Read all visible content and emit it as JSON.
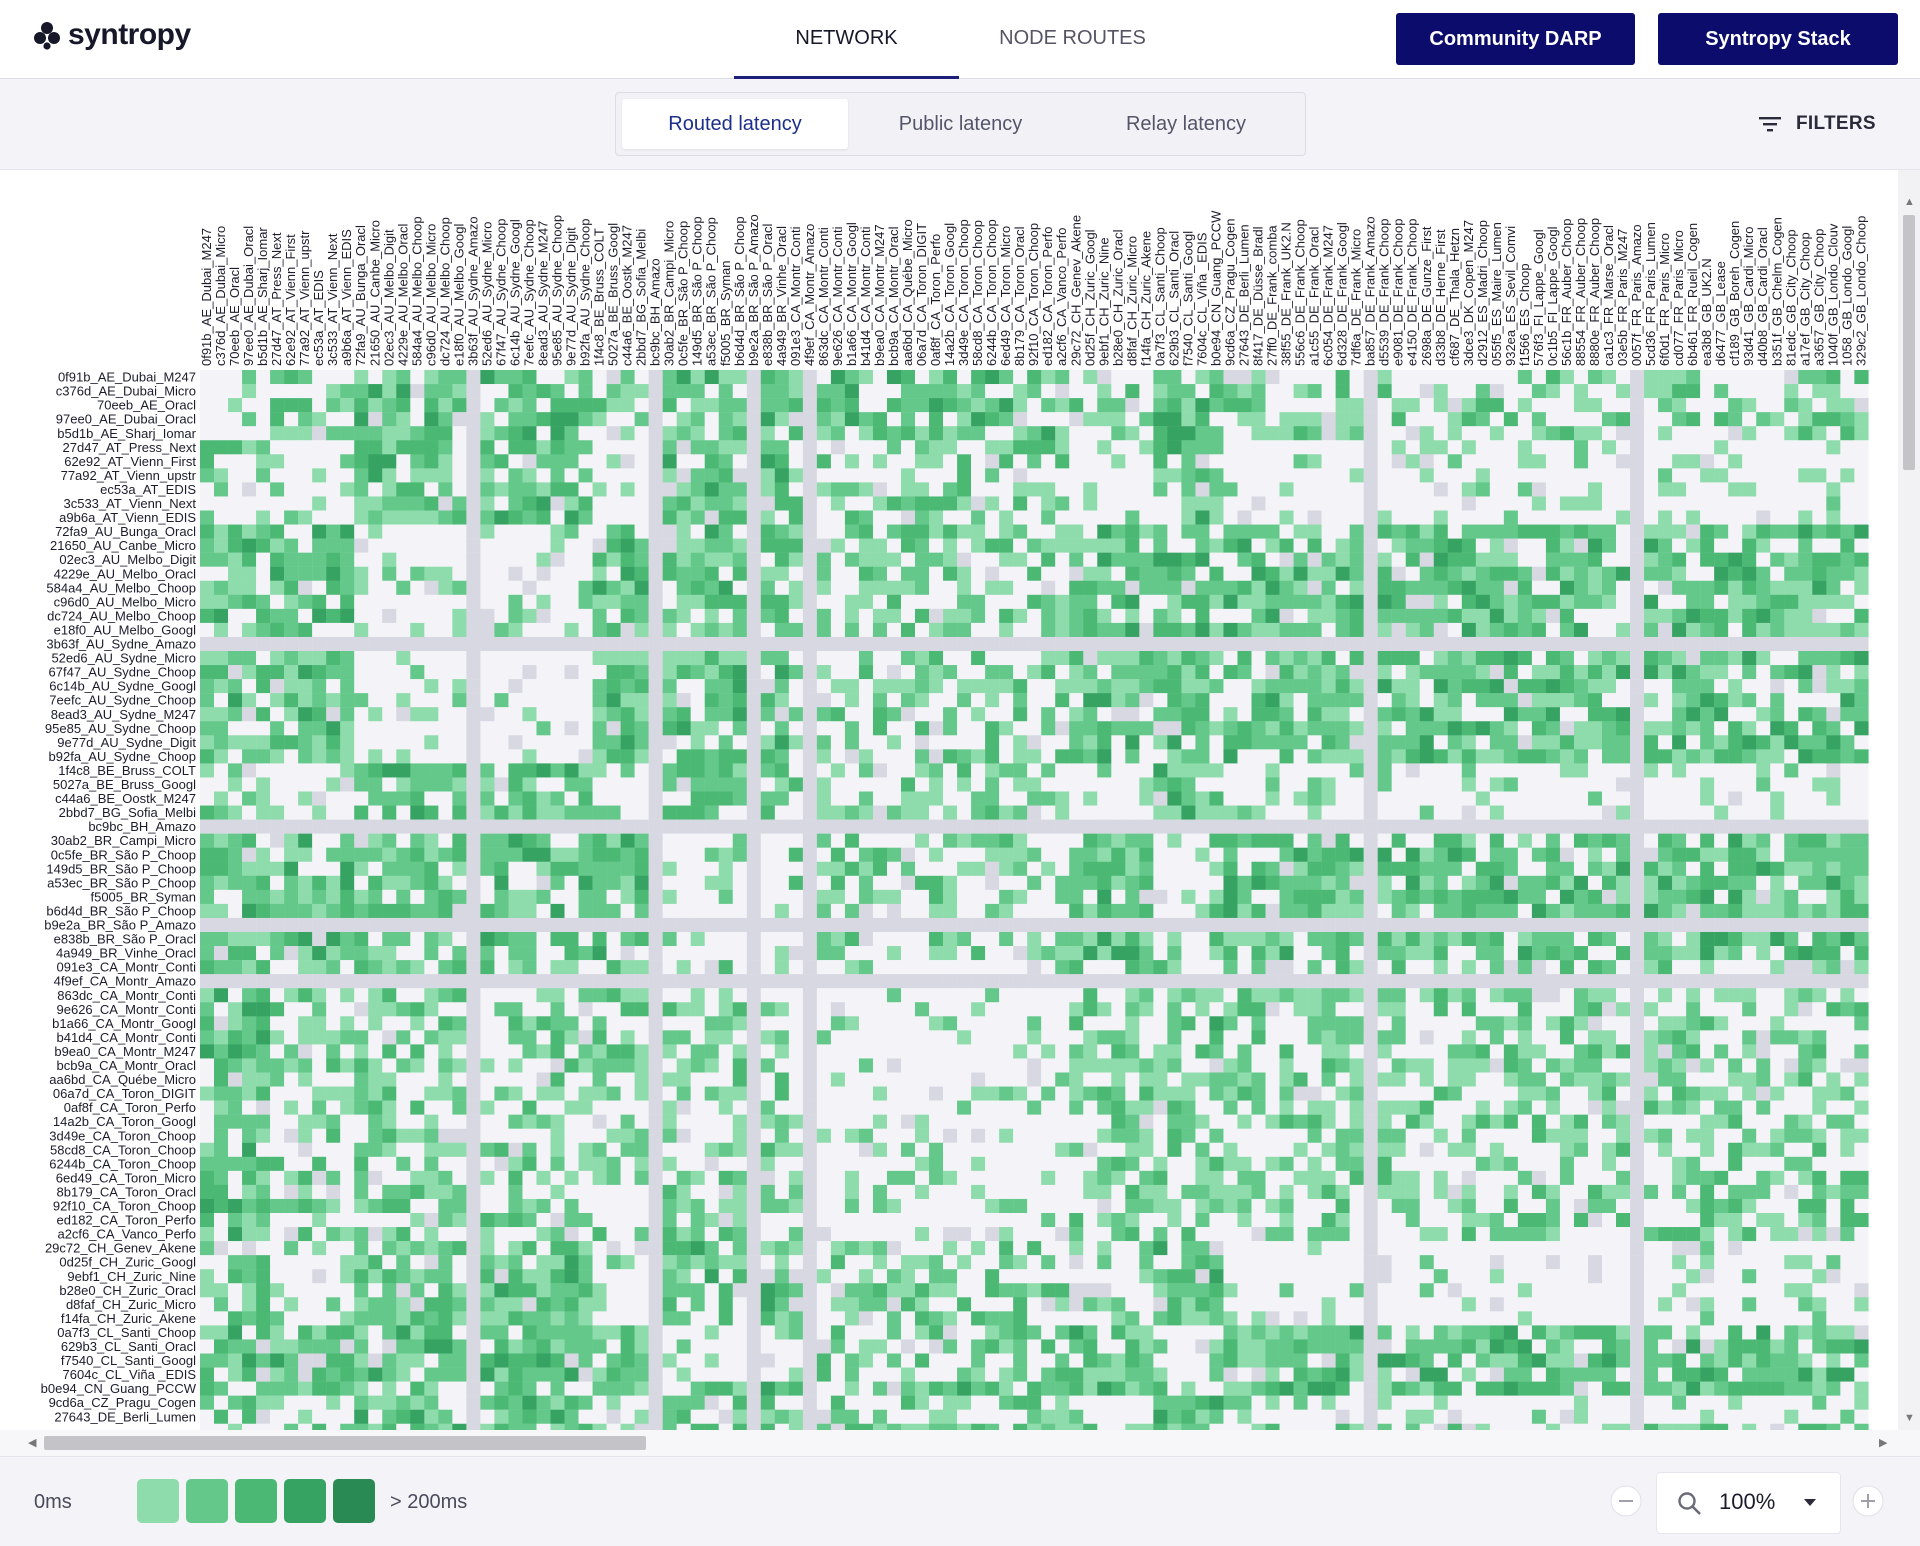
{
  "app": {
    "logo_text": "syntropy"
  },
  "nav": {
    "tabs": [
      {
        "label": "NETWORK",
        "active": true
      },
      {
        "label": "NODE ROUTES",
        "active": false
      }
    ],
    "buttons": [
      "Community DARP",
      "Syntropy Stack"
    ]
  },
  "toolbar": {
    "segments": [
      {
        "label": "Routed latency",
        "active": true
      },
      {
        "label": "Public latency",
        "active": false
      },
      {
        "label": "Relay latency",
        "active": false
      }
    ],
    "filters_label": "FILTERS"
  },
  "matrix": {
    "labels": [
      "0f91b_AE_Dubai_M247",
      "c376d_AE_Dubai_Micro",
      "70eeb_AE_Oracl",
      "97ee0_AE_Dubai_Oracl",
      "b5d1b_AE_Sharj_Iomar",
      "27d47_AT_Press_Next",
      "62e92_AT_Vienn_First",
      "77a92_AT_Vienn_upstr",
      "ec53a_AT_EDIS",
      "3c533_AT_Vienn_Next",
      "a9b6a_AT_Vienn_EDIS",
      "72fa9_AU_Bunga_Oracl",
      "21650_AU_Canbe_Micro",
      "02ec3_AU_Melbo_Digit",
      "4229e_AU_Melbo_Oracl",
      "584a4_AU_Melbo_Choop",
      "c96d0_AU_Melbo_Micro",
      "dc724_AU_Melbo_Choop",
      "e18f0_AU_Melbo_Googl",
      "3b63f_AU_Sydne_Amazo",
      "52ed6_AU_Sydne_Micro",
      "67f47_AU_Sydne_Choop",
      "6c14b_AU_Sydne_Googl",
      "7eefc_AU_Sydne_Choop",
      "8ead3_AU_Sydne_M247",
      "95e85_AU_Sydne_Choop",
      "9e77d_AU_Sydne_Digit",
      "b92fa_AU_Sydne_Choop",
      "1f4c8_BE_Bruss_COLT",
      "5027a_BE_Bruss_Googl",
      "c44a6_BE_Oostk_M247",
      "2bbd7_BG_Sofia_Melbi",
      "bc9bc_BH_Amazo",
      "30ab2_BR_Campi_Micro",
      "0c5fe_BR_São P_Choop",
      "149d5_BR_São P_Choop",
      "a53ec_BR_São P_Choop",
      "f5005_BR_Syman",
      "b6d4d_BR_São P_Choop",
      "b9e2a_BR_São P_Amazo",
      "e838b_BR_São P_Oracl",
      "4a949_BR_Vinhe_Oracl",
      "091e3_CA_Montr_Conti",
      "4f9ef_CA_Montr_Amazo",
      "863dc_CA_Montr_Conti",
      "9e626_CA_Montr_Conti",
      "b1a66_CA_Montr_Googl",
      "b41d4_CA_Montr_Conti",
      "b9ea0_CA_Montr_M247",
      "bcb9a_CA_Montr_Oracl",
      "aa6bd_CA_Québe_Micro",
      "06a7d_CA_Toron_DIGIT",
      "0af8f_CA_Toron_Perfo",
      "14a2b_CA_Toron_Googl",
      "3d49e_CA_Toron_Choop",
      "58cd8_CA_Toron_Choop",
      "6244b_CA_Toron_Choop",
      "6ed49_CA_Toron_Micro",
      "8b179_CA_Toron_Oracl",
      "92f10_CA_Toron_Choop",
      "ed182_CA_Toron_Perfo",
      "a2cf6_CA_Vanco_Perfo",
      "29c72_CH_Genev_Akene",
      "0d25f_CH_Zuric_Googl",
      "9ebf1_CH_Zuric_Nine",
      "b28e0_CH_Zuric_Oracl",
      "d8faf_CH_Zuric_Micro",
      "f14fa_CH_Zuric_Akene",
      "0a7f3_CL_Santi_Choop",
      "629b3_CL_Santi_Oracl",
      "f7540_CL_Santi_Googl",
      "7604c_CL_Viña _EDIS",
      "b0e94_CN_Guang_PCCW",
      "9cd6a_CZ_Pragu_Cogen",
      "27643_DE_Berli_Lumen"
    ],
    "col_labels": [
      "0f91b_AE_Dubai_M247",
      "c376d_AE_Dubai_Micro",
      "70eeb_AE_Oracl",
      "97ee0_AE_Dubai_Oracl",
      "b5d1b_AE_Sharj_Iomar",
      "27d47_AT_Press_Next",
      "62e92_AT_Vienn_First",
      "77a92_AT_Vienn_upstr",
      "ec53a_AT_EDIS",
      "3c533_AT_Vienn_Next",
      "a9b6a_AT_Vienn_EDIS",
      "72fa9_AU_Bunga_Oracl",
      "21650_AU_Canbe_Micro",
      "02ec3_AU_Melbo_Digit",
      "4229e_AU_Melbo_Oracl",
      "584a4_AU_Melbo_Choop",
      "c96d0_AU_Melbo_Micro",
      "dc724_AU_Melbo_Choop",
      "e18f0_AU_Melbo_Googl",
      "3b63f_AU_Sydne_Amazo",
      "52ed6_AU_Sydne_Micro",
      "67f47_AU_Sydne_Choop",
      "6c14b_AU_Sydne_Googl",
      "7eefc_AU_Sydne_Choop",
      "8ead3_AU_Sydne_M247",
      "95e85_AU_Sydne_Choop",
      "9e77d_AU_Sydne_Digit",
      "b92fa_AU_Sydne_Choop",
      "1f4c8_BE_Bruss_COLT",
      "5027a_BE_Bruss_Googl",
      "c44a6_BE_Oostk_M247",
      "2bbd7_BG_Sofia_Melbi",
      "bc9bc_BH_Amazo",
      "30ab2_BR_Campi_Micro",
      "0c5fe_BR_São P_Choop",
      "149d5_BR_São P_Choop",
      "a53ec_BR_São P_Choop",
      "f5005_BR_Syman",
      "b6d4d_BR_São P_Choop",
      "b9e2a_BR_São P_Amazo",
      "e838b_BR_São P_Oracl",
      "4a949_BR_Vinhe_Oracl",
      "091e3_CA_Montr_Conti",
      "4f9ef_CA_Montr_Amazo",
      "863dc_CA_Montr_Conti",
      "9e626_CA_Montr_Conti",
      "b1a66_CA_Montr_Googl",
      "b41d4_CA_Montr_Conti",
      "b9ea0_CA_Montr_M247",
      "bcb9a_CA_Montr_Oracl",
      "aa6bd_CA_Québe_Micro",
      "06a7d_CA_Toron_DIGIT",
      "0af8f_CA_Toron_Perfo",
      "14a2b_CA_Toron_Googl",
      "3d49e_CA_Toron_Choop",
      "58cd8_CA_Toron_Choop",
      "6244b_CA_Toron_Choop",
      "6ed49_CA_Toron_Micro",
      "8b179_CA_Toron_Oracl",
      "92f10_CA_Toron_Choop",
      "ed182_CA_Toron_Perfo",
      "a2cf6_CA_Vanco_Perfo",
      "29c72_CH_Genev_Akene",
      "0d25f_CH_Zuric_Googl",
      "9ebf1_CH_Zuric_Nine",
      "b28e0_CH_Zuric_Oracl",
      "d8faf_CH_Zuric_Micro",
      "f14fa_CH_Zuric_Akene",
      "0a7f3_CL_Santi_Choop",
      "629b3_CL_Santi_Oracl",
      "f7540_CL_Santi_Googl",
      "7604c_CL_Viña _EDIS",
      "b0e94_CN_Guang_PCCW",
      "9cd6a_CZ_Pragu_Cogen",
      "27643_DE_Berli_Lumen",
      "8f417_DE_Düsse_Bradl",
      "27ff0_DE_Frank_comba",
      "38f55_DE_Frank_UK2.N",
      "556c6_DE_Frank_Choop",
      "a1c55_DE_Frank_Oracl",
      "6c054_DE_Frank_M247",
      "6d328_DE_Frank_Googl",
      "7df6a_DE_Frank_Micro",
      "ba857_DE_Frank_Amazo",
      "d5539_DE_Frank_Choop",
      "e9081_DE_Frank_Choop",
      "e4150_DE_Frank_Choop",
      "2698a_DE_Gunze_First",
      "d33b8_DE_Herne_First",
      "cf687_DE_Thala_Hetzn",
      "3dce3_DK_Copen_M247",
      "d2912_ES_Madri_Choop",
      "055f5_ES_Maire_Lumen",
      "932ea_ES_Sevil_Comvi",
      "f1566_ES_Choop",
      "576f3_FI_Lappe_Googl",
      "0c1b5_FI_Lappe_Googl",
      "56c1b_FR_Auber_Choop",
      "88554_FR_Auber_Choop",
      "8880e_FR_Auber_Choop",
      "ca1c3_FR_Marse_Oracl",
      "03e5b_FR_Paris_M247",
      "0057f_FR_Paris_Amazo",
      "5cd36_FR_Paris_Lumen",
      "6f0d1_FR_Paris_Micro",
      "cd077_FR_Paris_Micro",
      "6b461_FR_Rueil_Cogen",
      "ea3b8_GB_UK2.N",
      "d6477_GB_Lease",
      "cf189_GB_Boreh_Cogen",
      "93d41_GB_Cardi_Micro",
      "d40b8_GB_Cardi_Oracl",
      "b351f_GB_Chelm_Cogen",
      "81edc_GB_City_Choop",
      "a17ef_GB_City_Choop",
      "a3657_GB_City_Choop",
      "1040f_GB_Londo_Clouv",
      "1058_GB_Londo_Googl",
      "329c2_GB_Londo_Choop"
    ],
    "cut_rows_visible_partially": true
  },
  "legend": {
    "min_label": "0ms",
    "max_label": "> 200ms",
    "colors": [
      "#f4f4f8",
      "#8edbab",
      "#63c88a",
      "#4bb874",
      "#36a363",
      "#2a8a53"
    ]
  },
  "palette": {
    "empty": "#ffffff",
    "missing": "#d8d8e2",
    "accent": "#0b0c6b"
  },
  "zoom": {
    "value": "100%"
  },
  "icons": [
    "syntropy-logo-icon",
    "filter-icon",
    "search-icon",
    "chevron-down-icon",
    "minus-icon",
    "plus-icon"
  ]
}
